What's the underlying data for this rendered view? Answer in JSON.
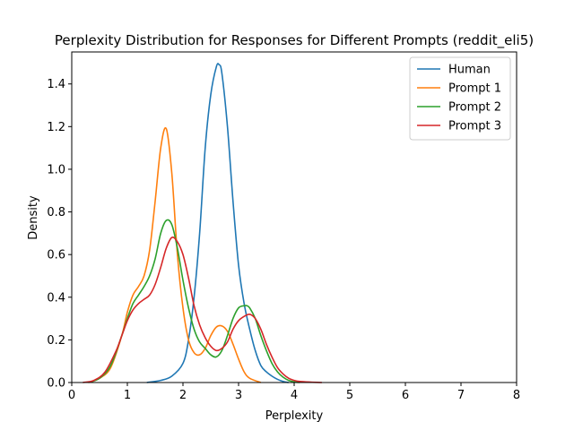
{
  "chart_data": {
    "type": "line",
    "title": "Perplexity Distribution for Responses for Different Prompts (reddit_eli5)",
    "xlabel": "Perplexity",
    "ylabel": "Density",
    "xlim": [
      0,
      8
    ],
    "ylim": [
      0,
      1.55
    ],
    "xticks": [
      "0",
      "1",
      "2",
      "3",
      "4",
      "5",
      "6",
      "7",
      "8"
    ],
    "yticks": [
      "0.0",
      "0.2",
      "0.4",
      "0.6",
      "0.8",
      "1.0",
      "1.2",
      "1.4"
    ],
    "legend": {
      "placement": "top-right"
    },
    "grid": false,
    "series": [
      {
        "name": "Human",
        "color": "#1f77b4",
        "x": [
          1.35,
          1.6,
          1.8,
          2.0,
          2.1,
          2.2,
          2.3,
          2.4,
          2.5,
          2.6,
          2.65,
          2.7,
          2.8,
          2.9,
          3.0,
          3.1,
          3.2,
          3.3,
          3.4,
          3.5,
          3.6,
          3.7,
          3.8,
          3.9
        ],
        "y": [
          0.0,
          0.01,
          0.03,
          0.09,
          0.2,
          0.4,
          0.7,
          1.1,
          1.35,
          1.48,
          1.49,
          1.45,
          1.2,
          0.85,
          0.55,
          0.37,
          0.25,
          0.15,
          0.08,
          0.05,
          0.03,
          0.015,
          0.005,
          0.0
        ]
      },
      {
        "name": "Prompt 1",
        "color": "#ff7f0e",
        "x": [
          0.3,
          0.5,
          0.7,
          0.9,
          1.0,
          1.1,
          1.2,
          1.3,
          1.4,
          1.5,
          1.6,
          1.7,
          1.8,
          1.9,
          2.0,
          2.1,
          2.2,
          2.3,
          2.4,
          2.5,
          2.6,
          2.7,
          2.8,
          2.9,
          3.0,
          3.1,
          3.2,
          3.4
        ],
        "y": [
          0.0,
          0.02,
          0.07,
          0.22,
          0.33,
          0.41,
          0.45,
          0.5,
          0.62,
          0.85,
          1.1,
          1.19,
          0.98,
          0.6,
          0.35,
          0.2,
          0.14,
          0.13,
          0.16,
          0.22,
          0.26,
          0.265,
          0.24,
          0.18,
          0.11,
          0.05,
          0.02,
          0.0
        ]
      },
      {
        "name": "Prompt 2",
        "color": "#2ca02c",
        "x": [
          0.3,
          0.5,
          0.7,
          0.9,
          1.0,
          1.1,
          1.2,
          1.3,
          1.4,
          1.5,
          1.6,
          1.7,
          1.8,
          1.9,
          2.0,
          2.1,
          2.2,
          2.3,
          2.4,
          2.5,
          2.6,
          2.7,
          2.8,
          2.9,
          3.0,
          3.1,
          3.15,
          3.2,
          3.3,
          3.4,
          3.5,
          3.6,
          3.7,
          3.8,
          3.9,
          4.0,
          4.1
        ],
        "y": [
          0.0,
          0.02,
          0.08,
          0.22,
          0.3,
          0.37,
          0.41,
          0.45,
          0.5,
          0.58,
          0.7,
          0.76,
          0.74,
          0.63,
          0.48,
          0.35,
          0.25,
          0.19,
          0.16,
          0.13,
          0.12,
          0.15,
          0.22,
          0.3,
          0.35,
          0.36,
          0.36,
          0.35,
          0.3,
          0.22,
          0.15,
          0.09,
          0.05,
          0.025,
          0.01,
          0.003,
          0.0
        ]
      },
      {
        "name": "Prompt 3",
        "color": "#d62728",
        "x": [
          0.2,
          0.4,
          0.6,
          0.8,
          0.9,
          1.0,
          1.1,
          1.2,
          1.3,
          1.4,
          1.5,
          1.6,
          1.7,
          1.8,
          1.9,
          2.0,
          2.1,
          2.2,
          2.3,
          2.4,
          2.5,
          2.6,
          2.7,
          2.8,
          2.9,
          3.0,
          3.1,
          3.2,
          3.3,
          3.4,
          3.5,
          3.6,
          3.7,
          3.8,
          3.9,
          4.0,
          4.1,
          4.3,
          4.5
        ],
        "y": [
          0.0,
          0.01,
          0.05,
          0.15,
          0.22,
          0.29,
          0.34,
          0.37,
          0.39,
          0.41,
          0.46,
          0.54,
          0.63,
          0.68,
          0.66,
          0.6,
          0.49,
          0.36,
          0.27,
          0.21,
          0.17,
          0.15,
          0.16,
          0.19,
          0.25,
          0.29,
          0.31,
          0.32,
          0.3,
          0.25,
          0.18,
          0.12,
          0.07,
          0.04,
          0.02,
          0.01,
          0.005,
          0.002,
          0.0
        ]
      }
    ]
  }
}
